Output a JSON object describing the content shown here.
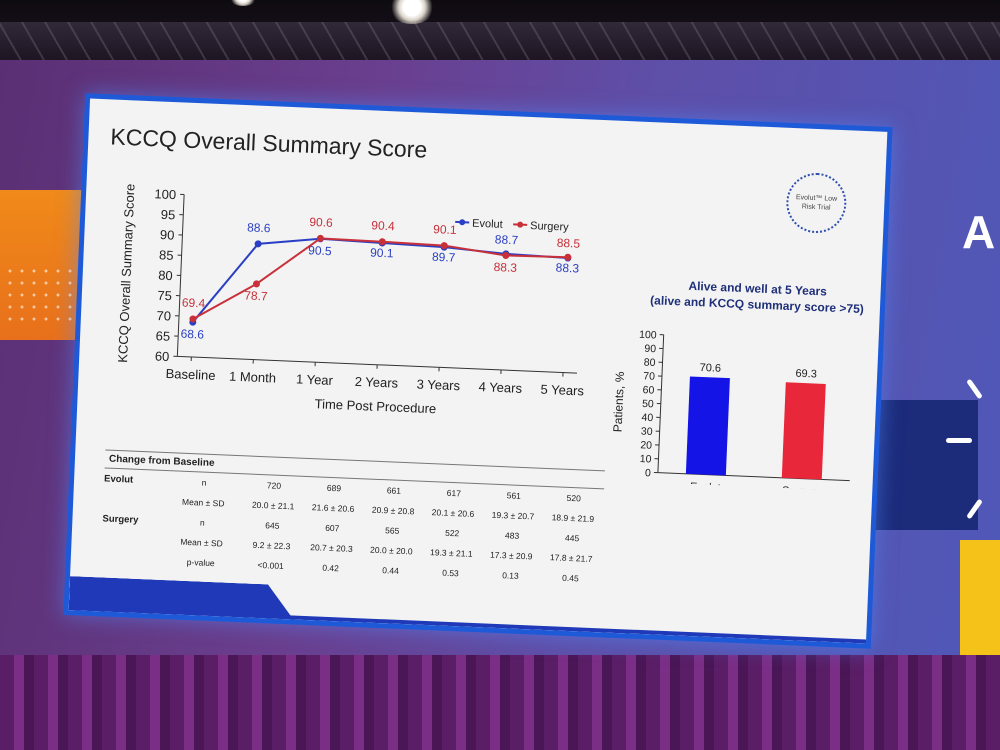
{
  "slide": {
    "title": "KCCQ Overall Summary Score",
    "logo_text": "Evolut™ Low Risk Trial",
    "right_letter": "A"
  },
  "colors": {
    "evolut": "#2b3fc4",
    "surgery": "#c8303a",
    "bar_evolut": "#1414e6",
    "bar_surgery": "#e8283a"
  },
  "chart_data": [
    {
      "type": "line",
      "ylabel": "KCCQ Overall Summary Score",
      "xlabel": "Time Post Procedure",
      "ylim": [
        60,
        100
      ],
      "yticks": [
        60,
        65,
        70,
        75,
        80,
        85,
        90,
        95,
        100
      ],
      "categories": [
        "Baseline",
        "1 Month",
        "1 Year",
        "2 Years",
        "3 Years",
        "4 Years",
        "5 Years"
      ],
      "legend_position": "top-right",
      "series": [
        {
          "name": "Evolut",
          "values": [
            68.6,
            88.6,
            90.5,
            90.1,
            89.7,
            88.7,
            88.3
          ],
          "labels": [
            "68.6",
            "88.6",
            "90.5",
            "90.1",
            "89.7",
            "88.7",
            "88.3"
          ]
        },
        {
          "name": "Surgery",
          "values": [
            69.4,
            78.7,
            90.6,
            90.4,
            90.1,
            88.3,
            88.5
          ],
          "labels": [
            "69.4",
            "78.7",
            "90.6",
            "90.4",
            "90.1",
            "88.3",
            "88.5"
          ]
        }
      ]
    },
    {
      "type": "bar",
      "title": "Alive and well at 5 Years",
      "subtitle": "(alive and KCCQ summary score >75)",
      "ylabel": "Patients, %",
      "ylim": [
        0,
        100
      ],
      "yticks": [
        0,
        10,
        20,
        30,
        40,
        50,
        60,
        70,
        80,
        90,
        100
      ],
      "categories": [
        "Evolut",
        "Surgery"
      ],
      "values": [
        70.6,
        69.3
      ],
      "labels": [
        "70.6",
        "69.3"
      ]
    }
  ],
  "table": {
    "heading": "Change from Baseline",
    "groups": [
      {
        "name": "Evolut",
        "rows": [
          {
            "label": "n",
            "values": [
              "720",
              "689",
              "661",
              "617",
              "561",
              "520"
            ]
          },
          {
            "label": "Mean ± SD",
            "values": [
              "20.0 ± 21.1",
              "21.6 ± 20.6",
              "20.9 ± 20.8",
              "20.1 ± 20.6",
              "19.3 ± 20.7",
              "18.9 ± 21.9"
            ]
          }
        ]
      },
      {
        "name": "Surgery",
        "rows": [
          {
            "label": "n",
            "values": [
              "645",
              "607",
              "565",
              "522",
              "483",
              "445"
            ]
          },
          {
            "label": "Mean ± SD",
            "values": [
              "9.2 ± 22.3",
              "20.7 ± 20.3",
              "20.0 ± 20.0",
              "19.3 ± 21.1",
              "17.3 ± 20.9",
              "17.8 ± 21.7"
            ]
          }
        ]
      },
      {
        "name": "",
        "rows": [
          {
            "label": "p-value",
            "values": [
              "<0.001",
              "0.42",
              "0.44",
              "0.53",
              "0.13",
              "0.45"
            ]
          }
        ]
      }
    ]
  }
}
